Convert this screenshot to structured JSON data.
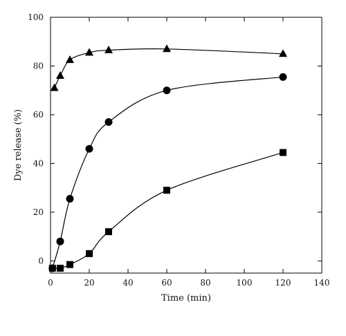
{
  "chart_data": {
    "type": "scatter",
    "title": "",
    "xlabel": "Time (min)",
    "ylabel": "Dye release (%)",
    "xlim": [
      0,
      140
    ],
    "ylim": [
      -5,
      100
    ],
    "x_ticks": [
      0,
      20,
      40,
      60,
      80,
      100,
      120,
      140
    ],
    "y_ticks": [
      0,
      20,
      40,
      60,
      80,
      100
    ],
    "grid": false,
    "legend": "none",
    "series": [
      {
        "marker": "triangle",
        "color": "#000000",
        "x": [
          2,
          5,
          10,
          20,
          30,
          60,
          120
        ],
        "y": [
          71,
          76,
          82.5,
          85.5,
          86.5,
          87,
          85
        ]
      },
      {
        "marker": "circle",
        "color": "#000000",
        "x": [
          1,
          5,
          10,
          20,
          30,
          60,
          120
        ],
        "y": [
          -3,
          8,
          25.5,
          46,
          57,
          70,
          75.5
        ]
      },
      {
        "marker": "square",
        "color": "#000000",
        "x": [
          1,
          5,
          10,
          20,
          30,
          60,
          120
        ],
        "y": [
          -3,
          -3,
          -1.5,
          3,
          12,
          29,
          44.5
        ]
      }
    ]
  }
}
